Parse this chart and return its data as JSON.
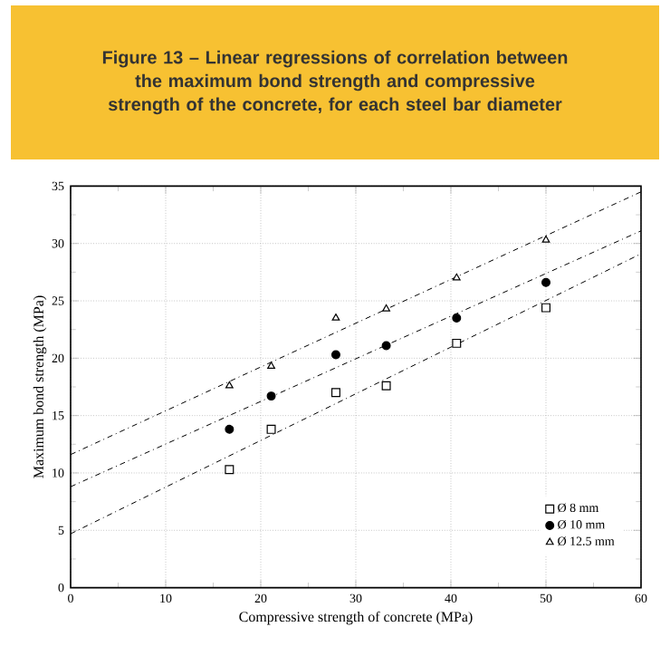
{
  "chart_data": {
    "type": "scatter",
    "title": "Figure 13 –  Linear regressions of correlation between the maximum bond strength and compressive strength of the concrete, for each steel bar diameter",
    "xlabel": "Compressive strength of concrete (MPa)",
    "ylabel": "Maximum bond strength (MPa)",
    "xlim": [
      0,
      60
    ],
    "ylim": [
      0,
      35
    ],
    "xticks": [
      0,
      10,
      20,
      30,
      40,
      50,
      60
    ],
    "yticks": [
      0,
      5,
      10,
      15,
      20,
      25,
      30,
      35
    ],
    "grid": true,
    "legend": "bottom right",
    "series": [
      {
        "name": "Ø 8 mm",
        "color": "#000000",
        "marker": "square",
        "x": [
          16.7,
          21.1,
          27.9,
          33.2,
          40.6,
          50.0
        ],
        "values": [
          10.3,
          13.8,
          17.0,
          17.6,
          21.3,
          24.4
        ]
      },
      {
        "name": "Ø 10 mm",
        "color": "#000000",
        "marker": "circle",
        "x": [
          16.7,
          21.1,
          27.9,
          33.2,
          40.6,
          50.0
        ],
        "values": [
          13.8,
          16.7,
          20.3,
          21.1,
          23.5,
          26.6
        ]
      },
      {
        "name": "Ø 12.5 mm",
        "color": "#000000",
        "marker": "triangle",
        "x": [
          16.7,
          21.1,
          27.9,
          33.2,
          40.6,
          50.0
        ],
        "values": [
          17.6,
          19.3,
          23.5,
          24.3,
          27.0,
          30.3
        ]
      },
      {
        "type": "line",
        "color": "#000000",
        "marker": "none",
        "line_style": "dashed",
        "x": [
          0,
          60
        ],
        "values": [
          4.7,
          29.1
        ]
      },
      {
        "type": "line",
        "color": "#000000",
        "marker": "none",
        "line_style": "dashed",
        "x": [
          0,
          60
        ],
        "values": [
          8.8,
          31.1
        ]
      },
      {
        "type": "line",
        "color": "#000000",
        "marker": "none",
        "line_style": "dashed",
        "x": [
          0,
          60
        ],
        "values": [
          11.6,
          34.5
        ]
      }
    ]
  }
}
